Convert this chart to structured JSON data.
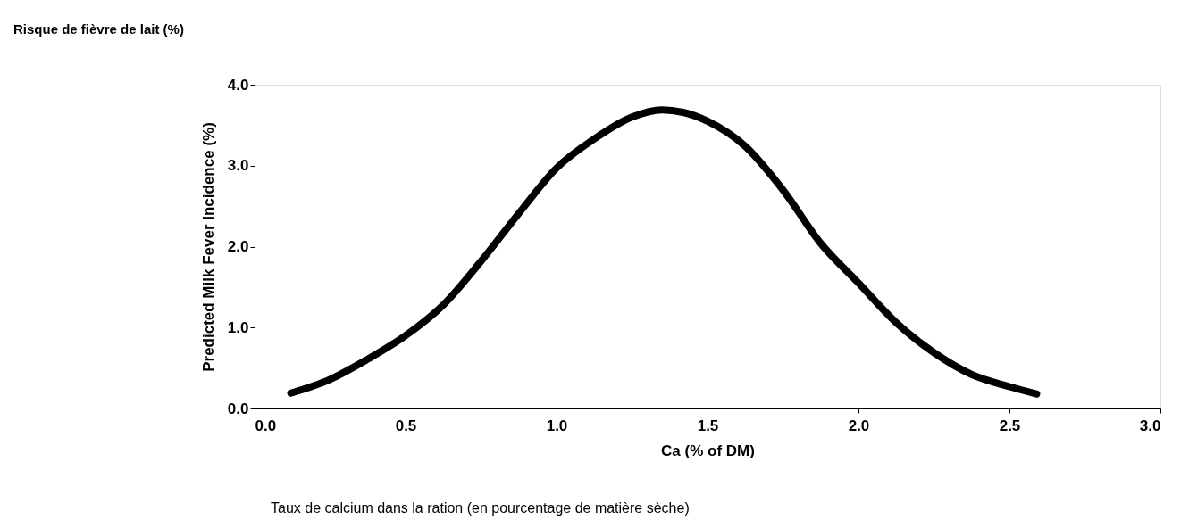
{
  "chart_data": {
    "type": "line",
    "title": "Risque de fièvre de lait (%)",
    "xlabel": "Ca (% of DM)",
    "ylabel": "Predicted Milk Fever Incidence (%)",
    "annotations": [
      "Taux de calcium dans la ration (en pourcentage de matière sèche)"
    ],
    "x": [
      0.12,
      0.25,
      0.375,
      0.5,
      0.625,
      0.75,
      0.875,
      1.0,
      1.125,
      1.25,
      1.35,
      1.5,
      1.625,
      1.75,
      1.875,
      2.0,
      2.125,
      2.25,
      2.375,
      2.5,
      2.59
    ],
    "series": [
      {
        "color": "#000000",
        "values": [
          0.19,
          0.36,
          0.61,
          0.9,
          1.28,
          1.82,
          2.41,
          2.97,
          3.33,
          3.6,
          3.69,
          3.55,
          3.24,
          2.7,
          2.04,
          1.55,
          1.06,
          0.69,
          0.42,
          0.27,
          0.18
        ]
      }
    ],
    "xlim": [
      0,
      3
    ],
    "ylim": [
      0,
      4
    ],
    "xticks": [
      {
        "value": 0,
        "label": "0.0"
      },
      0.5,
      {
        "value": 1,
        "label": "1.0"
      },
      1.5,
      {
        "value": 2,
        "label": "2.0"
      },
      2.5,
      {
        "value": 3,
        "label": "3.0"
      }
    ],
    "yticks": [
      {
        "value": 0,
        "label": "0.0"
      },
      {
        "value": 1,
        "label": "1.0"
      },
      {
        "value": 2,
        "label": "2.0"
      },
      {
        "value": 3,
        "label": "3.0"
      },
      {
        "value": 4,
        "label": "4.0"
      }
    ],
    "grid": false,
    "marker": "none",
    "line_style": "solid"
  }
}
